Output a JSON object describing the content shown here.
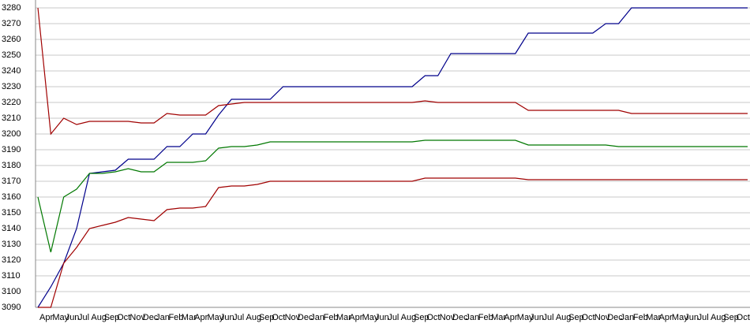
{
  "chart_data": {
    "type": "line",
    "categories": [
      "Apr",
      "May",
      "Jun",
      "Jul",
      "Aug",
      "Sep",
      "Oct",
      "Nov",
      "Dec",
      "Jan",
      "Feb",
      "Mar",
      "Apr",
      "May",
      "Jun",
      "Jul",
      "Aug",
      "Sep",
      "Oct",
      "Nov",
      "Dec",
      "Jan",
      "Feb",
      "Mar",
      "Apr",
      "May",
      "Jun",
      "Jul",
      "Aug",
      "Sep",
      "Oct",
      "Nov",
      "Dec",
      "Jan",
      "Feb",
      "Mar",
      "Apr",
      "May",
      "Jun",
      "Jul",
      "Aug",
      "Sep",
      "Oct",
      "Nov",
      "Dec",
      "Jan",
      "Feb",
      "Mar",
      "Apr",
      "May",
      "Jun",
      "Jul",
      "Aug",
      "Sep",
      "Oct",
      "Nov"
    ],
    "series": [
      {
        "color": "#00008b",
        "values": [
          3090,
          3103,
          3118,
          3140,
          3175,
          3176,
          3177,
          3184,
          3184,
          3184,
          3192,
          3192,
          3200,
          3200,
          3212,
          3222,
          3222,
          3222,
          3222,
          3230,
          3230,
          3230,
          3230,
          3230,
          3230,
          3230,
          3230,
          3230,
          3230,
          3230,
          3237,
          3237,
          3251,
          3251,
          3251,
          3251,
          3251,
          3251,
          3264,
          3264,
          3264,
          3264,
          3264,
          3264,
          3270,
          3270,
          3280,
          3280,
          3280,
          3280,
          3280,
          3280,
          3280,
          3280,
          3280,
          3280
        ]
      },
      {
        "color": "#a00000",
        "values": [
          3280,
          3200,
          3210,
          3206,
          3208,
          3208,
          3208,
          3208,
          3207,
          3207,
          3213,
          3212,
          3212,
          3212,
          3218,
          3219,
          3220,
          3220,
          3220,
          3220,
          3220,
          3220,
          3220,
          3220,
          3220,
          3220,
          3220,
          3220,
          3220,
          3220,
          3221,
          3220,
          3220,
          3220,
          3220,
          3220,
          3220,
          3220,
          3215,
          3215,
          3215,
          3215,
          3215,
          3215,
          3215,
          3215,
          3213,
          3213,
          3213,
          3213,
          3213,
          3213,
          3213,
          3213,
          3213,
          3213
        ]
      },
      {
        "color": "#007800",
        "values": [
          3160,
          3125,
          3160,
          3165,
          3175,
          3175,
          3176,
          3178,
          3176,
          3176,
          3182,
          3182,
          3182,
          3183,
          3191,
          3192,
          3192,
          3193,
          3195,
          3195,
          3195,
          3195,
          3195,
          3195,
          3195,
          3195,
          3195,
          3195,
          3195,
          3195,
          3196,
          3196,
          3196,
          3196,
          3196,
          3196,
          3196,
          3196,
          3193,
          3193,
          3193,
          3193,
          3193,
          3193,
          3193,
          3192,
          3192,
          3192,
          3192,
          3192,
          3192,
          3192,
          3192,
          3192,
          3192,
          3192
        ]
      },
      {
        "color": "#a00000",
        "values": [
          3090,
          3090,
          3118,
          3128,
          3140,
          3142,
          3144,
          3147,
          3146,
          3145,
          3152,
          3153,
          3153,
          3154,
          3166,
          3167,
          3167,
          3168,
          3170,
          3170,
          3170,
          3170,
          3170,
          3170,
          3170,
          3170,
          3170,
          3170,
          3170,
          3170,
          3172,
          3172,
          3172,
          3172,
          3172,
          3172,
          3172,
          3172,
          3171,
          3171,
          3171,
          3171,
          3171,
          3171,
          3171,
          3171,
          3171,
          3171,
          3171,
          3171,
          3171,
          3171,
          3171,
          3171,
          3171,
          3171
        ]
      }
    ],
    "ylim": [
      3090,
      3280
    ],
    "yticks": [
      3090,
      3100,
      3110,
      3120,
      3130,
      3140,
      3150,
      3160,
      3170,
      3180,
      3190,
      3200,
      3210,
      3220,
      3230,
      3240,
      3250,
      3260,
      3270,
      3280
    ],
    "grid": true
  }
}
